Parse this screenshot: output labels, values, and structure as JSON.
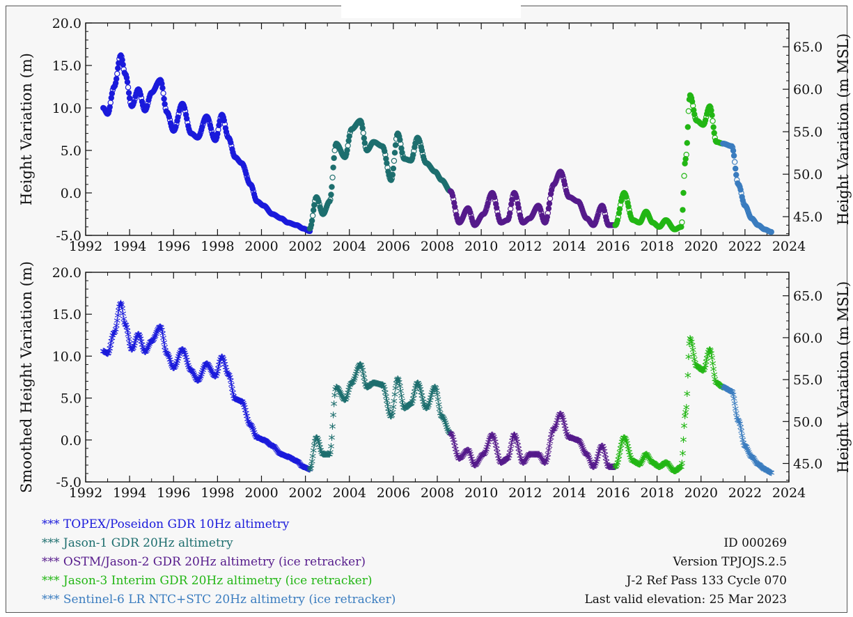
{
  "chart_data": [
    {
      "type": "scatter",
      "xlabel": "",
      "ylabel": "Height Variation (m)",
      "ylabel_right": "Height Variation (m MSL)",
      "xlim": [
        1992,
        2024
      ],
      "ylim": [
        -5,
        20
      ],
      "ylim_right": [
        42.8,
        67.8
      ],
      "x_ticks": [
        "1992",
        "1994",
        "1996",
        "1998",
        "2000",
        "2002",
        "2004",
        "2006",
        "2008",
        "2010",
        "2012",
        "2014",
        "2016",
        "2018",
        "2020",
        "2022",
        "2024"
      ],
      "y_ticks": [
        "-5.0",
        "0.0",
        "5.0",
        "10.0",
        "15.0",
        "20.0"
      ],
      "y_ticks_right": [
        "45.0",
        "50.0",
        "55.0",
        "60.0",
        "65.0"
      ],
      "marker": "circle",
      "series": [
        {
          "name": "TOPEX/Poseidon GDR 10Hz altimetry",
          "color": "#1a1adb",
          "x": [
            1992.8,
            1993.0,
            1993.3,
            1993.6,
            1993.8,
            1994.1,
            1994.4,
            1994.7,
            1995.0,
            1995.4,
            1995.7,
            1996.0,
            1996.4,
            1996.8,
            1997.1,
            1997.5,
            1997.9,
            1998.2,
            1998.5,
            1998.8,
            1999.1,
            1999.5,
            1999.8,
            2000.1,
            2000.5,
            2000.9,
            2001.2,
            2001.6,
            2001.9,
            2002.2
          ],
          "y": [
            10.0,
            9.3,
            12.5,
            16.2,
            14.0,
            10.2,
            12.2,
            9.7,
            11.8,
            13.3,
            9.5,
            7.3,
            10.5,
            7.0,
            6.5,
            9.0,
            6.2,
            9.2,
            6.5,
            4.2,
            3.5,
            1.0,
            -1.0,
            -1.5,
            -2.5,
            -3.0,
            -3.5,
            -3.8,
            -4.2,
            -4.5
          ]
        },
        {
          "name": "Jason-1 GDR 20Hz altimetry",
          "color": "#1d6e6e",
          "x": [
            2002.2,
            2002.5,
            2002.8,
            2003.1,
            2003.4,
            2003.8,
            2004.1,
            2004.5,
            2004.8,
            2005.1,
            2005.5,
            2005.9,
            2006.2,
            2006.5,
            2006.8,
            2007.1,
            2007.5,
            2007.9,
            2008.2,
            2008.6
          ],
          "y": [
            -4.2,
            -0.5,
            -2.5,
            -1.0,
            5.8,
            4.2,
            7.5,
            8.5,
            5.0,
            6.0,
            5.5,
            1.5,
            7.0,
            4.0,
            3.8,
            6.5,
            3.5,
            2.5,
            1.5,
            0.2
          ]
        },
        {
          "name": "OSTM/Jason-2 GDR 20Hz altimetry (ice retracker)",
          "color": "#551a8b",
          "x": [
            2008.6,
            2009.0,
            2009.4,
            2009.7,
            2010.1,
            2010.5,
            2010.9,
            2011.2,
            2011.5,
            2011.9,
            2012.2,
            2012.6,
            2012.9,
            2013.3,
            2013.6,
            2014.0,
            2014.4,
            2014.8,
            2015.1,
            2015.5,
            2015.8,
            2016.1
          ],
          "y": [
            0.2,
            -3.5,
            -1.8,
            -3.8,
            -2.5,
            0.0,
            -3.5,
            -3.2,
            0.0,
            -3.5,
            -3.0,
            -1.5,
            -3.5,
            1.0,
            2.5,
            -0.5,
            -1.0,
            -3.0,
            -3.8,
            -1.5,
            -3.8,
            -3.8
          ]
        },
        {
          "name": "Jason-3 Interim GDR 20Hz altimetry (ice retracker)",
          "color": "#22b614",
          "x": [
            2016.1,
            2016.5,
            2016.9,
            2017.2,
            2017.5,
            2017.8,
            2018.1,
            2018.4,
            2018.8,
            2019.1,
            2019.3,
            2019.5,
            2019.8,
            2020.1,
            2020.4,
            2020.7,
            2021.0
          ],
          "y": [
            -3.8,
            0.0,
            -3.2,
            -3.5,
            -2.2,
            -3.5,
            -4.0,
            -3.2,
            -4.3,
            -4.0,
            4.0,
            11.5,
            8.5,
            8.0,
            10.2,
            6.0,
            5.8
          ]
        },
        {
          "name": "Sentinel-6 LR NTC+STC 20Hz altimetry (ice retracker)",
          "color": "#3a7cbf",
          "x": [
            2021.0,
            2021.4,
            2021.7,
            2022.0,
            2022.3,
            2022.6,
            2022.9,
            2023.2
          ],
          "y": [
            5.8,
            5.5,
            1.0,
            -1.5,
            -3.0,
            -3.8,
            -4.3,
            -4.6
          ]
        }
      ]
    },
    {
      "type": "scatter",
      "xlabel": "",
      "ylabel": "Smoothed Height Variation (m)",
      "ylabel_right": "Height Variation (m MSL)",
      "xlim": [
        1992,
        2024
      ],
      "ylim": [
        -5,
        20
      ],
      "ylim_right": [
        42.8,
        67.8
      ],
      "x_ticks": [
        "1992",
        "1994",
        "1996",
        "1998",
        "2000",
        "2002",
        "2004",
        "2006",
        "2008",
        "2010",
        "2012",
        "2014",
        "2016",
        "2018",
        "2020",
        "2022",
        "2024"
      ],
      "y_ticks": [
        "-5.0",
        "0.0",
        "5.0",
        "10.0",
        "15.0",
        "20.0"
      ],
      "y_ticks_right": [
        "45.0",
        "50.0",
        "55.0",
        "60.0",
        "65.0"
      ],
      "marker": "asterisk",
      "series": [
        {
          "name": "TOPEX/Poseidon GDR 10Hz altimetry",
          "color": "#1a1adb",
          "x": [
            1992.8,
            1993.0,
            1993.3,
            1993.6,
            1993.8,
            1994.1,
            1994.4,
            1994.7,
            1995.0,
            1995.4,
            1995.7,
            1996.0,
            1996.4,
            1996.8,
            1997.1,
            1997.5,
            1997.9,
            1998.2,
            1998.5,
            1998.8,
            1999.1,
            1999.5,
            1999.8,
            2000.1,
            2000.5,
            2000.9,
            2001.2,
            2001.6,
            2001.9,
            2002.2
          ],
          "y": [
            10.3,
            10.0,
            12.5,
            16.0,
            13.5,
            10.5,
            12.3,
            10.2,
            11.5,
            13.2,
            10.0,
            8.3,
            10.5,
            8.0,
            6.8,
            8.8,
            7.3,
            9.6,
            7.5,
            4.6,
            4.3,
            1.5,
            0.0,
            -0.3,
            -1.0,
            -2.0,
            -2.3,
            -2.8,
            -3.5,
            -3.8
          ]
        },
        {
          "name": "Jason-1 GDR 20Hz altimetry",
          "color": "#1d6e6e",
          "x": [
            2002.2,
            2002.5,
            2002.8,
            2003.1,
            2003.4,
            2003.8,
            2004.1,
            2004.5,
            2004.8,
            2005.1,
            2005.5,
            2005.9,
            2006.2,
            2006.5,
            2006.8,
            2007.1,
            2007.5,
            2007.9,
            2008.2,
            2008.6
          ],
          "y": [
            -3.8,
            0.0,
            -2.0,
            -2.0,
            6.0,
            4.5,
            6.5,
            8.7,
            6.0,
            6.5,
            6.3,
            2.5,
            7.0,
            3.5,
            4.0,
            6.5,
            3.5,
            6.0,
            2.5,
            0.5
          ]
        },
        {
          "name": "OSTM/Jason-2 GDR 20Hz altimetry (ice retracker)",
          "color": "#551a8b",
          "x": [
            2008.6,
            2009.0,
            2009.4,
            2009.7,
            2010.1,
            2010.5,
            2010.9,
            2011.2,
            2011.5,
            2011.9,
            2012.2,
            2012.6,
            2012.9,
            2013.3,
            2013.6,
            2014.0,
            2014.4,
            2014.8,
            2015.1,
            2015.5,
            2015.8,
            2016.1
          ],
          "y": [
            0.5,
            -2.5,
            -1.5,
            -3.3,
            -2.0,
            0.3,
            -3.0,
            -2.5,
            0.3,
            -3.0,
            -2.0,
            -2.0,
            -3.0,
            1.0,
            2.8,
            0.0,
            -0.3,
            -2.0,
            -3.5,
            -1.0,
            -3.5,
            -3.5
          ]
        },
        {
          "name": "Jason-3 Interim GDR 20Hz altimetry (ice retracker)",
          "color": "#22b614",
          "x": [
            2016.1,
            2016.5,
            2016.9,
            2017.2,
            2017.5,
            2017.8,
            2018.1,
            2018.4,
            2018.8,
            2019.1,
            2019.3,
            2019.5,
            2019.8,
            2020.1,
            2020.4,
            2020.7,
            2021.0
          ],
          "y": [
            -3.5,
            0.0,
            -2.8,
            -3.2,
            -2.0,
            -3.0,
            -3.5,
            -3.0,
            -4.0,
            -3.5,
            3.0,
            11.8,
            8.5,
            8.0,
            10.5,
            6.5,
            6.0
          ]
        },
        {
          "name": "Sentinel-6 LR NTC+STC 20Hz altimetry (ice retracker)",
          "color": "#3a7cbf",
          "x": [
            2021.0,
            2021.4,
            2021.7,
            2022.0,
            2022.3,
            2022.6,
            2022.9,
            2023.2
          ],
          "y": [
            6.0,
            5.5,
            2.0,
            -1.0,
            -2.3,
            -3.2,
            -3.8,
            -4.2
          ]
        }
      ]
    }
  ],
  "legend": [
    {
      "marker": "***",
      "label": "TOPEX/Poseidon GDR 10Hz altimetry",
      "color": "#1a1adb"
    },
    {
      "marker": "***",
      "label": "Jason-1 GDR 20Hz altimetry",
      "color": "#1d6e6e"
    },
    {
      "marker": "***",
      "label": "OSTM/Jason-2 GDR 20Hz altimetry (ice retracker)",
      "color": "#551a8b"
    },
    {
      "marker": "***",
      "label": "Jason-3 Interim GDR 20Hz altimetry (ice retracker)",
      "color": "#22b614"
    },
    {
      "marker": "***",
      "label": "Sentinel-6 LR NTC+STC 20Hz altimetry (ice retracker)",
      "color": "#3a7cbf"
    }
  ],
  "info": {
    "id": "ID 000269",
    "version": "Version TPJOJS.2.5",
    "pass": "J-2 Ref Pass 133 Cycle 070",
    "last_valid": "Last valid elevation: 25 Mar 2023"
  }
}
